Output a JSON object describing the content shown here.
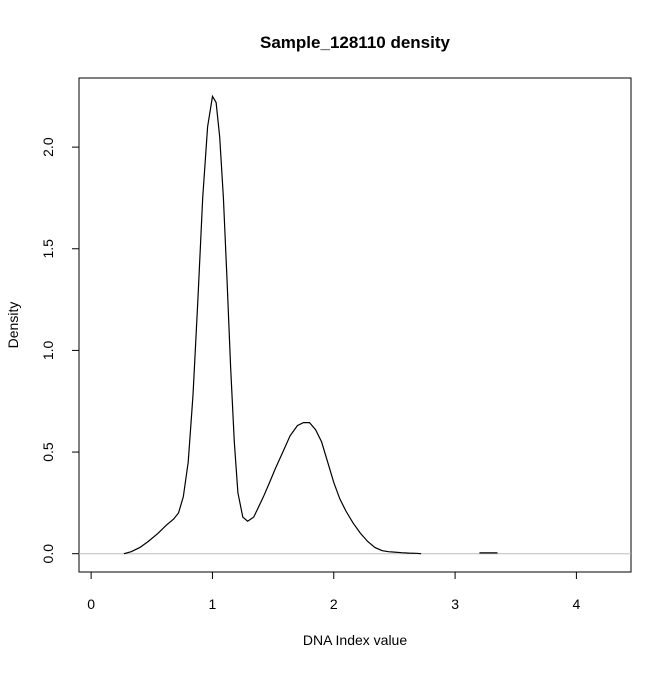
{
  "chart_data": {
    "type": "line",
    "title": "Sample_128110 density",
    "xlabel": "DNA Index value",
    "ylabel": "Density",
    "xlim": [
      -0.1,
      4.45
    ],
    "ylim": [
      -0.09,
      2.34
    ],
    "x_ticks": [
      0,
      1,
      2,
      3,
      4
    ],
    "x_tick_labels": [
      "0",
      "1",
      "2",
      "3",
      "4"
    ],
    "y_ticks": [
      0.0,
      0.5,
      1.0,
      1.5,
      2.0
    ],
    "y_tick_labels": [
      "0.0",
      "0.5",
      "1.0",
      "1.5",
      "2.0"
    ],
    "baseline": 0,
    "baseline_color": "#bebebe",
    "line_color": "#000000",
    "grid": false,
    "series": [
      {
        "x": [
          0.27,
          0.33,
          0.4,
          0.47,
          0.55,
          0.62,
          0.68,
          0.72,
          0.76,
          0.8,
          0.84,
          0.88,
          0.92,
          0.96,
          1.0,
          1.03,
          1.06,
          1.09,
          1.12,
          1.15,
          1.18,
          1.21,
          1.25,
          1.29,
          1.34,
          1.38,
          1.42,
          1.47,
          1.52,
          1.58,
          1.64,
          1.7,
          1.75,
          1.8,
          1.85,
          1.9,
          1.95,
          2.0,
          2.05,
          2.1,
          2.16,
          2.22,
          2.28,
          2.34,
          2.4,
          2.45,
          2.5,
          2.56,
          2.62,
          2.68,
          2.72,
          3.2,
          3.35
        ],
        "y": [
          0.0,
          0.01,
          0.03,
          0.06,
          0.1,
          0.14,
          0.17,
          0.2,
          0.28,
          0.45,
          0.78,
          1.25,
          1.75,
          2.1,
          2.25,
          2.22,
          2.05,
          1.75,
          1.35,
          0.92,
          0.55,
          0.3,
          0.18,
          0.16,
          0.18,
          0.23,
          0.28,
          0.35,
          0.42,
          0.5,
          0.58,
          0.63,
          0.645,
          0.645,
          0.61,
          0.55,
          0.45,
          0.35,
          0.27,
          0.21,
          0.15,
          0.1,
          0.06,
          0.03,
          0.015,
          0.01,
          0.008,
          0.005,
          0.003,
          0.002,
          0.0,
          0.004,
          0.004
        ]
      }
    ]
  }
}
